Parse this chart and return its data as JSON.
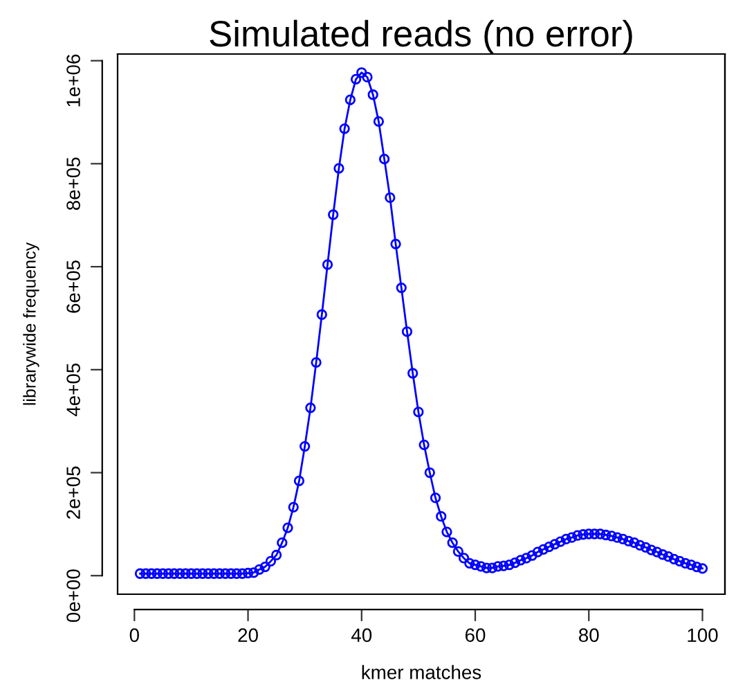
{
  "chart_data": {
    "type": "line",
    "title": "Simulated reads (no error)",
    "xlabel": "kmer matches",
    "ylabel": "librarywide frequency",
    "x": [
      1,
      2,
      3,
      4,
      5,
      6,
      7,
      8,
      9,
      10,
      11,
      12,
      13,
      14,
      15,
      16,
      17,
      18,
      19,
      20,
      21,
      22,
      23,
      24,
      25,
      26,
      27,
      28,
      29,
      30,
      31,
      32,
      33,
      34,
      35,
      36,
      37,
      38,
      39,
      40,
      41,
      42,
      43,
      44,
      45,
      46,
      47,
      48,
      49,
      50,
      51,
      52,
      53,
      54,
      55,
      56,
      57,
      58,
      59,
      60,
      61,
      62,
      63,
      64,
      65,
      66,
      67,
      68,
      69,
      70,
      71,
      72,
      73,
      74,
      75,
      76,
      77,
      78,
      79,
      80,
      81,
      82,
      83,
      84,
      85,
      86,
      87,
      88,
      89,
      90,
      91,
      92,
      93,
      94,
      95,
      96,
      97,
      98,
      99,
      100
    ],
    "series": [
      {
        "color": "#0000ff",
        "values": [
          4000,
          4000,
          4000,
          4000,
          4000,
          4000,
          4000,
          4000,
          4000,
          4000,
          4000,
          4000,
          4000,
          4000,
          4000,
          4000,
          4000,
          4000,
          4000,
          5000,
          6000,
          12000,
          17000,
          28000,
          40000,
          64000,
          93000,
          133000,
          184000,
          251000,
          326000,
          414000,
          507000,
          604000,
          701000,
          791000,
          868000,
          924000,
          964000,
          977000,
          968000,
          934000,
          882000,
          809000,
          734000,
          644000,
          559000,
          474000,
          393000,
          318000,
          254000,
          200000,
          151000,
          115000,
          85000,
          64000,
          47000,
          34000,
          24000,
          21000,
          18000,
          15000,
          15000,
          18000,
          19000,
          21000,
          25000,
          30000,
          34000,
          39000,
          46000,
          51000,
          56000,
          61000,
          66000,
          71000,
          74000,
          78000,
          80000,
          81000,
          81000,
          81000,
          79000,
          77000,
          74000,
          71000,
          67000,
          64000,
          59000,
          55000,
          50000,
          46000,
          41000,
          37000,
          32000,
          28000,
          24000,
          21000,
          17000,
          14000
        ]
      }
    ],
    "xlim": [
      -2.96,
      103.96
    ],
    "ylim": [
      -36000,
      1013000
    ],
    "xticks": [
      0,
      20,
      40,
      60,
      80,
      100
    ],
    "yticks": [
      {
        "value": 0,
        "label": "0e+00"
      },
      {
        "value": 200000,
        "label": "2e+05"
      },
      {
        "value": 400000,
        "label": "4e+05"
      },
      {
        "value": 600000,
        "label": "6e+05"
      },
      {
        "value": 800000,
        "label": "8e+05"
      },
      {
        "value": 1000000,
        "label": "1e+06"
      }
    ],
    "marker": "circle",
    "line_style": "solid",
    "grid": false,
    "legend": false
  }
}
